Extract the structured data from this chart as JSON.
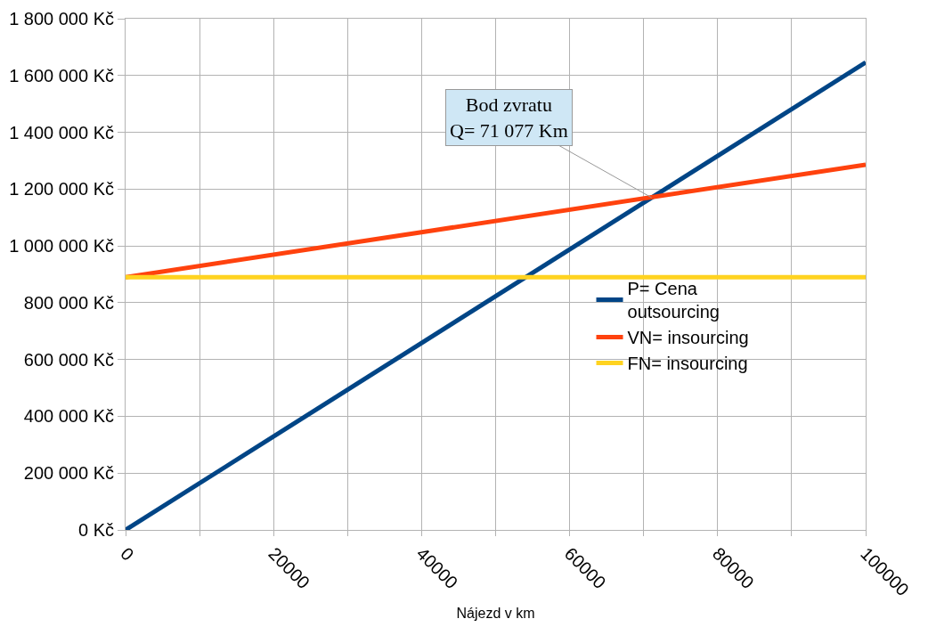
{
  "chart_data": {
    "type": "line",
    "x": [
      0,
      100000
    ],
    "series": [
      {
        "name": "P= Cena outsourcing",
        "color": "#004586",
        "values": [
          0,
          1646000
        ]
      },
      {
        "name": "VN= insourcing",
        "color": "#ff420e",
        "values": [
          890000,
          1286000
        ]
      },
      {
        "name": "FN= insourcing",
        "color": "#ffd320",
        "values": [
          890000,
          890000
        ]
      }
    ],
    "xlabel": "Nájezd v km",
    "xlim": [
      0,
      100000
    ],
    "xticks": [
      0,
      {
        "value": 10000,
        "label": null
      },
      20000,
      {
        "value": 30000,
        "label": null
      },
      40000,
      {
        "value": 50000,
        "label": null
      },
      60000,
      {
        "value": 70000,
        "label": null
      },
      80000,
      {
        "value": 90000,
        "label": null
      },
      100000
    ],
    "ylim": [
      0,
      1800000
    ],
    "yticks": [
      {
        "value": 0,
        "label": "0 Kč"
      },
      {
        "value": 200000,
        "label": "200 000 Kč"
      },
      {
        "value": 400000,
        "label": "400 000 Kč"
      },
      {
        "value": 600000,
        "label": "600 000 Kč"
      },
      {
        "value": 800000,
        "label": "800 000 Kč"
      },
      {
        "value": 1000000,
        "label": "1 000 000 Kč"
      },
      {
        "value": 1200000,
        "label": "1 200 000 Kč"
      },
      {
        "value": 1400000,
        "label": "1 400 000 Kč"
      },
      {
        "value": 1600000,
        "label": "1 600 000 Kč"
      },
      {
        "value": 1800000,
        "label": "1 800 000 Kč"
      }
    ],
    "annotations": [
      {
        "text": "Bod zvratu\nQ= 71 077 Km",
        "x": 71077,
        "y": 1170000
      }
    ],
    "grid": true,
    "legend": "right",
    "marker": "none",
    "line_style": "solid"
  }
}
